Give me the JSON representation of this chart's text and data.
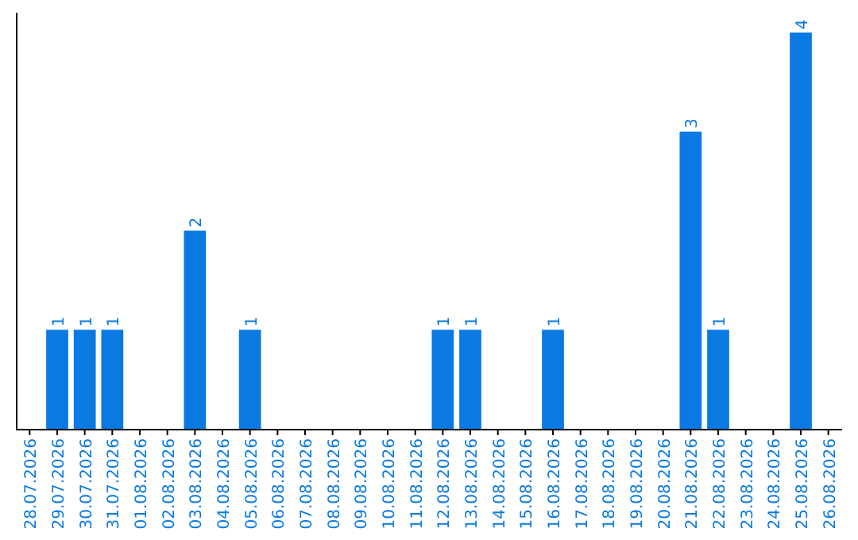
{
  "chart_data": {
    "type": "bar",
    "categories": [
      "28.07.2026",
      "29.07.2026",
      "30.07.2026",
      "31.07.2026",
      "01.08.2026",
      "02.08.2026",
      "03.08.2026",
      "04.08.2026",
      "05.08.2026",
      "06.08.2026",
      "07.08.2026",
      "08.08.2026",
      "09.08.2026",
      "10.08.2026",
      "11.08.2026",
      "12.08.2026",
      "13.08.2026",
      "14.08.2026",
      "15.08.2026",
      "16.08.2026",
      "17.08.2026",
      "18.08.2026",
      "19.08.2026",
      "20.08.2026",
      "21.08.2026",
      "22.08.2026",
      "23.08.2026",
      "24.08.2026",
      "25.08.2026",
      "26.08.2026"
    ],
    "values": [
      0,
      1,
      1,
      1,
      0,
      0,
      2,
      0,
      1,
      0,
      0,
      0,
      0,
      0,
      0,
      1,
      1,
      0,
      0,
      1,
      0,
      0,
      0,
      0,
      3,
      1,
      0,
      0,
      4,
      0
    ],
    "value_labels": [
      null,
      "1",
      "1",
      "1",
      null,
      null,
      "2",
      null,
      "1",
      null,
      null,
      null,
      null,
      null,
      null,
      "1",
      "1",
      null,
      null,
      "1",
      null,
      null,
      null,
      null,
      "3",
      "1",
      null,
      null,
      "4",
      null
    ],
    "color": "#0a7ae2",
    "ylim": [
      0,
      4.2
    ],
    "tick_labels": "x"
  }
}
